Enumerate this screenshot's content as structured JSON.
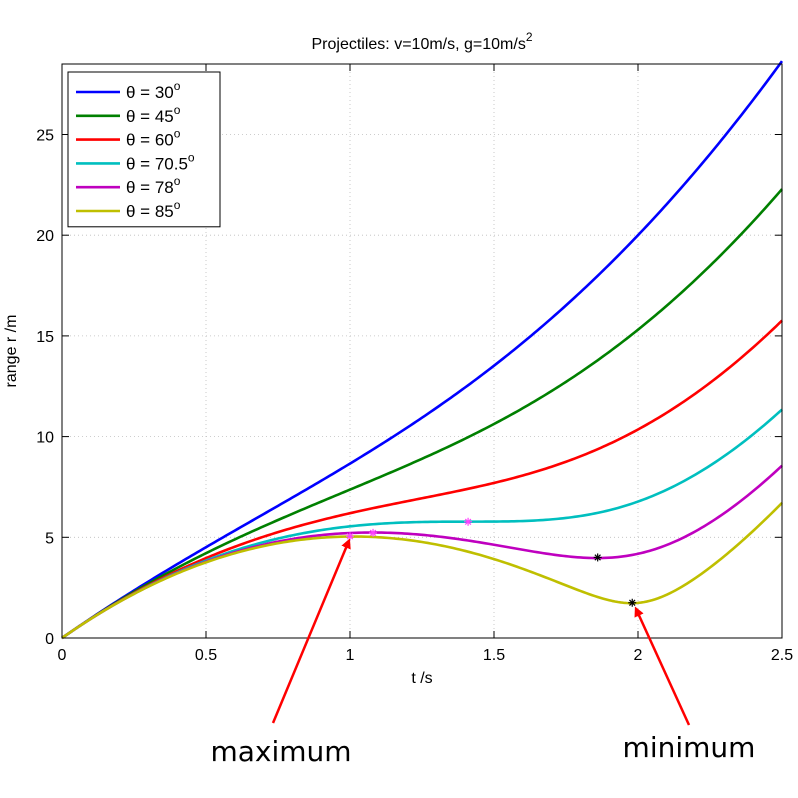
{
  "chart_data": {
    "type": "line",
    "title": "Projectiles: v=10m/s, g=10m/s",
    "title_superscript": "2",
    "xlabel": "t /s",
    "ylabel": "range r /m",
    "xlim": [
      0,
      2.5
    ],
    "ylim": [
      0,
      28.5
    ],
    "x_ticks": [
      0,
      0.5,
      1,
      1.5,
      2,
      2.5
    ],
    "x_tick_labels": [
      "0",
      "0.5",
      "1",
      "1.5",
      "2",
      "2.5"
    ],
    "y_ticks": [
      0,
      5,
      10,
      15,
      20,
      25
    ],
    "y_tick_labels": [
      "0",
      "5",
      "10",
      "15",
      "20",
      "25"
    ],
    "grid": true,
    "legend_position": "top-left",
    "v": 10,
    "g": 10,
    "series": [
      {
        "name": "θ = 30",
        "angle_deg": 30,
        "color": "#0000ff"
      },
      {
        "name": "θ = 45",
        "angle_deg": 45,
        "color": "#008000"
      },
      {
        "name": "θ = 60",
        "angle_deg": 60,
        "color": "#ff0000"
      },
      {
        "name": "θ = 70.5",
        "angle_deg": 70.5,
        "color": "#00bfbf"
      },
      {
        "name": "θ = 78",
        "angle_deg": 78,
        "color": "#bf00bf"
      },
      {
        "name": "θ = 85",
        "angle_deg": 85,
        "color": "#bfbf00"
      }
    ],
    "legend_degree_symbol": "o",
    "markers": [
      {
        "series": "θ = 70.5",
        "t": 1.41,
        "r": 5.77,
        "color": "#ff40ff",
        "symbol": "*"
      },
      {
        "series": "θ = 78",
        "t": 1.08,
        "r": 5.22,
        "color": "#ff40ff",
        "symbol": "*"
      },
      {
        "series": "θ = 78",
        "t": 1.86,
        "r": 4.0,
        "color": "#000000",
        "symbol": "*"
      },
      {
        "series": "θ = 85",
        "t": 1.0,
        "r": 5.05,
        "color": "#ff40ff",
        "symbol": "*"
      },
      {
        "series": "θ = 85",
        "t": 1.98,
        "r": 1.75,
        "color": "#000000",
        "symbol": "*"
      }
    ],
    "annotations": [
      {
        "text": "maximum",
        "point_t": 1.0,
        "point_r": 5.05
      },
      {
        "text": "minimum",
        "point_t": 1.98,
        "point_r": 1.75
      }
    ]
  }
}
